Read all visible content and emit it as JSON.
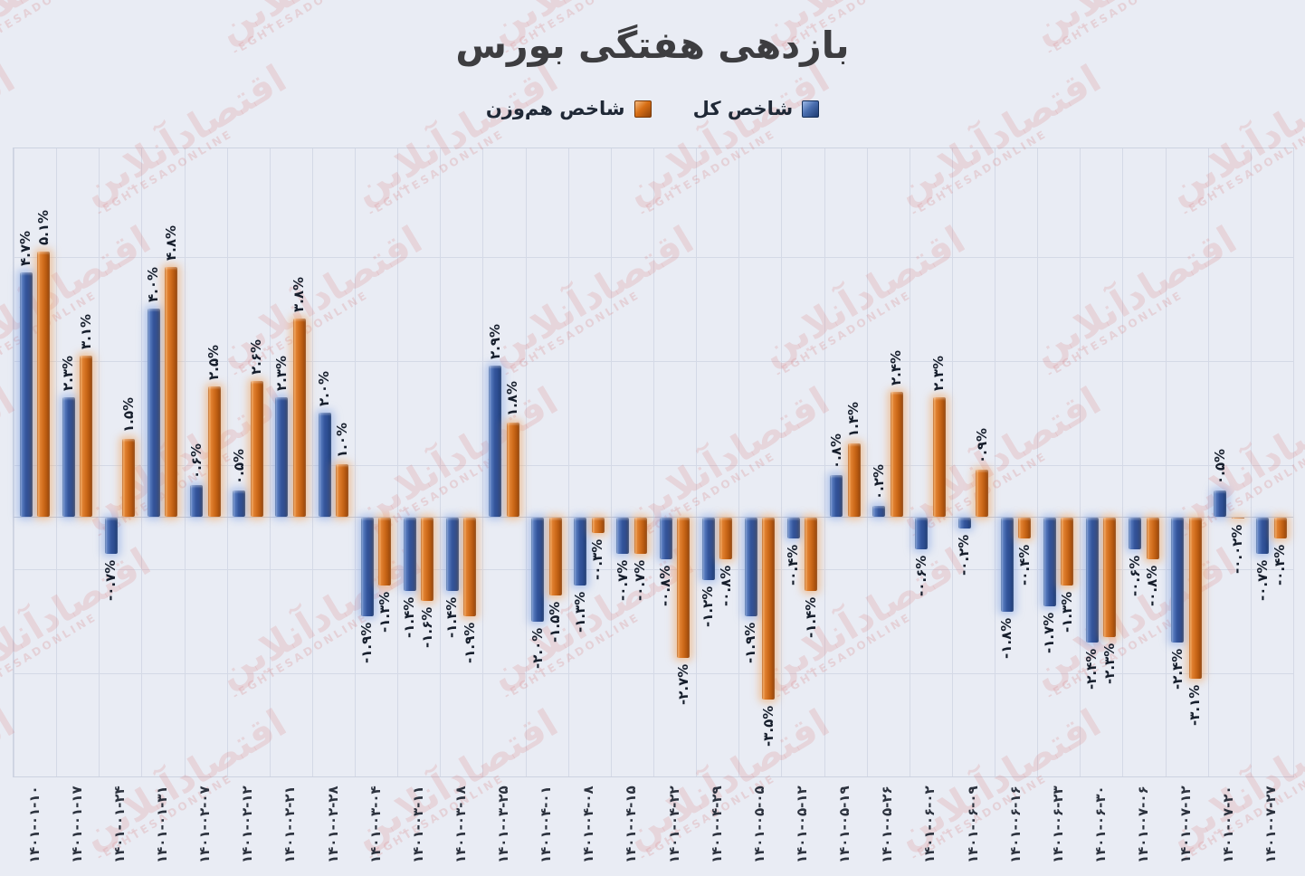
{
  "title": "بازدهی هفتگی بورس",
  "legend": [
    {
      "label": "شاخص کل",
      "color": "#33559c"
    },
    {
      "label": "شاخص هم‌وزن",
      "color": "#cd6a1a"
    }
  ],
  "watermark": {
    "fa": "اقتصادآنلاین",
    "en": "-EGHTESADONLINE"
  },
  "colors": {
    "background": "#e9ecf4",
    "gridline": "#d4d9e6",
    "title_text": "#3d3d40",
    "label_text": "#161e2c",
    "watermark_red": "#d35f5f",
    "series_blue": "#33559c",
    "series_orange": "#cd6a1a"
  },
  "chart_data": {
    "type": "bar",
    "title": "بازدهی هفتگی بورس",
    "xlabel": "",
    "ylabel": "",
    "legend_position": "top-center",
    "grid": true,
    "y_axis_visible": false,
    "ylim": [
      -5.0,
      7.1
    ],
    "y_gridline_values": [
      5,
      3,
      1,
      -1,
      -3
    ],
    "categories": [
      "۱۴۰۱-۰۱-۱۰",
      "۱۴۰۱-۰۱-۱۷",
      "۱۴۰۱-۰۱-۲۴",
      "۱۴۰۱-۰۱-۳۱",
      "۱۴۰۱-۰۲-۰۷",
      "۱۴۰۱-۰۲-۱۲",
      "۱۴۰۱-۰۲-۲۱",
      "۱۴۰۱-۰۲-۲۸",
      "۱۴۰۱-۰۳-۰۴",
      "۱۴۰۱-۰۳-۱۱",
      "۱۴۰۱-۰۳-۱۸",
      "۱۴۰۱-۰۳-۲۵",
      "۱۴۰۱-۰۴-۰۱",
      "۱۴۰۱-۰۴-۰۸",
      "۱۴۰۱-۰۴-۱۵",
      "۱۴۰۱-۰۴-۲۲",
      "۱۴۰۱-۰۴-۲۹",
      "۱۴۰۱-۰۵-۰۵",
      "۱۴۰۱-۰۵-۱۲",
      "۱۴۰۱-۰۵-۱۹",
      "۱۴۰۱-۰۵-۲۶",
      "۱۴۰۱-۰۶-۰۲",
      "۱۴۰۱-۰۶-۰۹",
      "۱۴۰۱-۰۶-۱۶",
      "۱۴۰۱-۰۶-۲۳",
      "۱۴۰۱-۰۶-۳۰",
      "۱۴۰۱-۰۷-۰۶",
      "۱۴۰۱-۰۷-۱۲",
      "۱۴۰۱-۰۷-۲۰",
      "۱۴۰۱-۰۷-۲۷"
    ],
    "series": [
      {
        "name": "شاخص کل",
        "color": "#33559c",
        "values": [
          4.7,
          2.3,
          -0.7,
          4.0,
          0.6,
          0.5,
          2.3,
          2.0,
          -1.9,
          -1.4,
          -1.4,
          2.9,
          -2.0,
          -1.3,
          -0.7,
          -0.8,
          -1.2,
          -1.9,
          -0.4,
          0.8,
          0.2,
          -0.6,
          -0.2,
          -1.8,
          -1.7,
          -2.4,
          -0.6,
          -2.4,
          0.5,
          -0.7
        ],
        "labels": [
          "۴.۷%",
          "۲.۳%",
          "-۰.۷%",
          "۴.۰%",
          "۰.۶%",
          "۰.۵%",
          "۲.۳%",
          "۲.۰%",
          "-۱.۹%",
          "-۱.۴%",
          "-۱.۴%",
          "۲.۹%",
          "-۲.۰%",
          "-۱.۳%",
          "-۰.۷%",
          "-۰.۸%",
          "-۱.۲%",
          "-۱.۹%",
          "-۰.۴%",
          "۰.۸%",
          "۰.۲%",
          "-۰.۶%",
          "-۰.۲%",
          "-۱.۸%",
          "-۱.۷%",
          "-۲.۴%",
          "-۰.۶%",
          "-۲.۴%",
          "۰.۵%",
          "-۰.۷%"
        ]
      },
      {
        "name": "شاخص هم‌وزن",
        "color": "#cd6a1a",
        "values": [
          5.1,
          3.1,
          1.5,
          4.8,
          2.5,
          2.6,
          3.8,
          1.0,
          -1.3,
          -1.6,
          -1.9,
          1.8,
          -1.5,
          -0.3,
          -0.7,
          -2.7,
          -0.8,
          -3.5,
          -1.4,
          1.4,
          2.4,
          2.3,
          0.9,
          -0.4,
          -1.3,
          -2.3,
          -0.8,
          -3.1,
          -0.02,
          -0.4
        ],
        "labels": [
          "۵.۱%",
          "۳.۱%",
          "۱.۵%",
          "۴.۸%",
          "۲.۵%",
          "۲.۶%",
          "۳.۸%",
          "۱.۰%",
          "-۱.۳%",
          "-۱.۶%",
          "-۱.۹%",
          "۱.۸%",
          "-۱.۵%",
          "-۰.۳%",
          "-۰.۷%",
          "-۲.۷%",
          "-۰.۸%",
          "-۳.۵%",
          "-۱.۴%",
          "۱.۴%",
          "۲.۴%",
          "۲.۳%",
          "۰.۹%",
          "-۰.۴%",
          "-۱.۳%",
          "-۲.۳%",
          "-۰.۸%",
          "-۳.۱%",
          "-۰.۰۲%",
          "-۰.۴%"
        ]
      }
    ]
  }
}
